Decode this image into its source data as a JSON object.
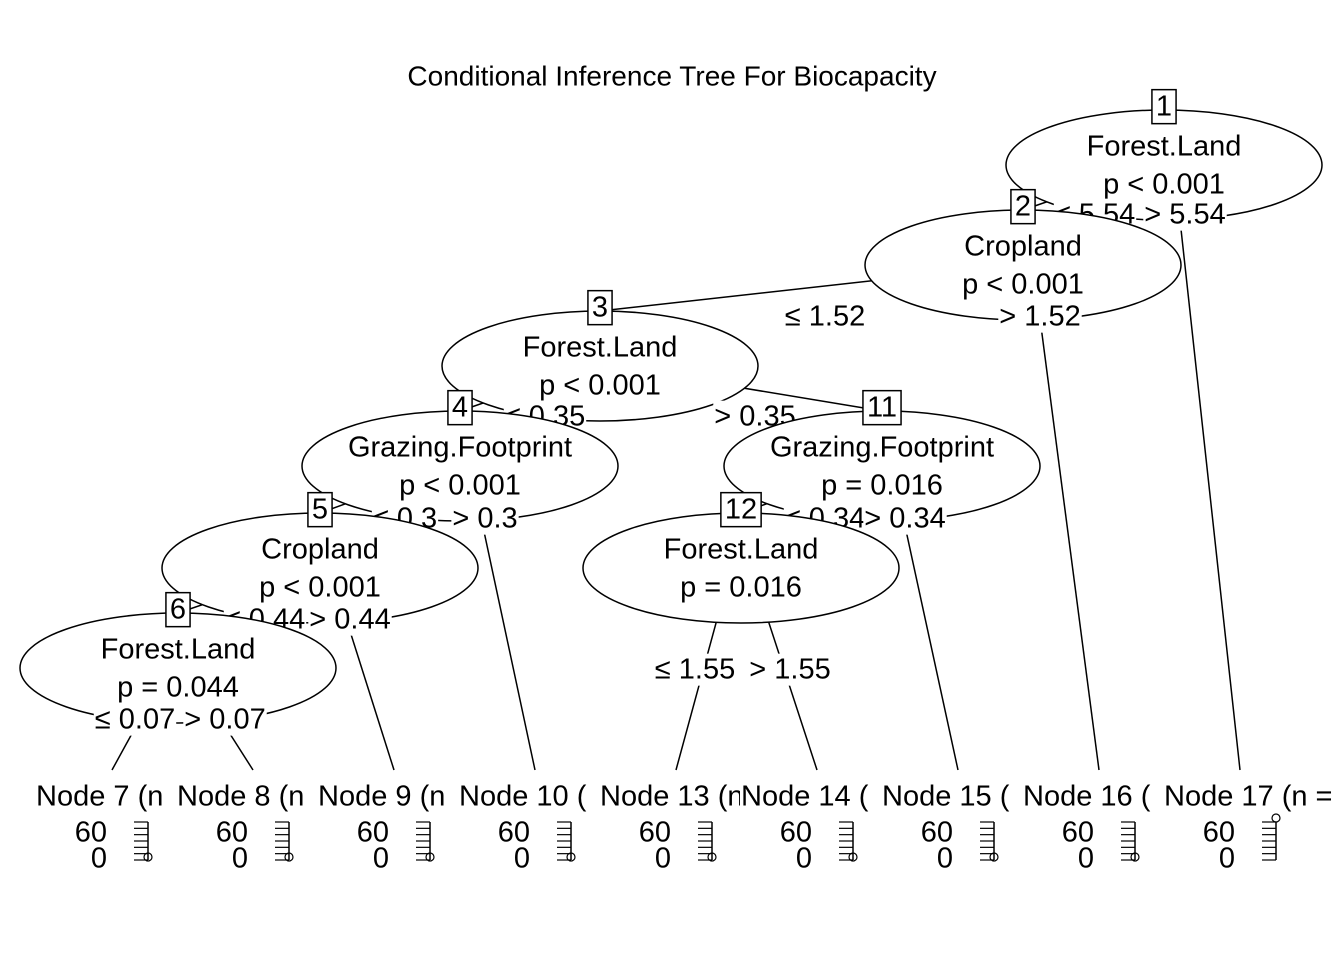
{
  "title": "Conditional Inference Tree For Biocapacity",
  "nodes": [
    {
      "id": "1",
      "variable": "Forest.Land",
      "p": "p < 0.001",
      "left": "≤ 5.54",
      "right": "> 5.54"
    },
    {
      "id": "2",
      "variable": "Cropland",
      "p": "p < 0.001",
      "left": "≤ 1.52",
      "right": "> 1.52"
    },
    {
      "id": "3",
      "variable": "Forest.Land",
      "p": "p < 0.001",
      "left": "≤ 0.35",
      "right": "> 0.35"
    },
    {
      "id": "4",
      "variable": "Grazing.Footprint",
      "p": "p < 0.001",
      "left": "≤ 0.3",
      "right": "> 0.3"
    },
    {
      "id": "5",
      "variable": "Cropland",
      "p": "p < 0.001",
      "left": "≤ 0.44",
      "right": "> 0.44"
    },
    {
      "id": "6",
      "variable": "Forest.Land",
      "p": "p = 0.044",
      "left": "≤ 0.07",
      "right": "> 0.07"
    },
    {
      "id": "11",
      "variable": "Grazing.Footprint",
      "p": "p = 0.016",
      "left": "≤ 0.34",
      "right": "> 0.34"
    },
    {
      "id": "12",
      "variable": "Forest.Land",
      "p": "p = 0.016",
      "left": "≤ 1.55",
      "right": "> 1.55"
    }
  ],
  "terminals": [
    {
      "label": "Node 7 (n"
    },
    {
      "label": "Node 8 (n"
    },
    {
      "label": "Node 9 (n"
    },
    {
      "label": "Node 10 ("
    },
    {
      "label": "Node 13 (n"
    },
    {
      "label": "Node 14 ("
    },
    {
      "label": "Node 15 ("
    },
    {
      "label": "Node 16 ("
    },
    {
      "label": "Node 17 (n ="
    }
  ],
  "terminal_axis_labels": [
    "60",
    "0"
  ]
}
